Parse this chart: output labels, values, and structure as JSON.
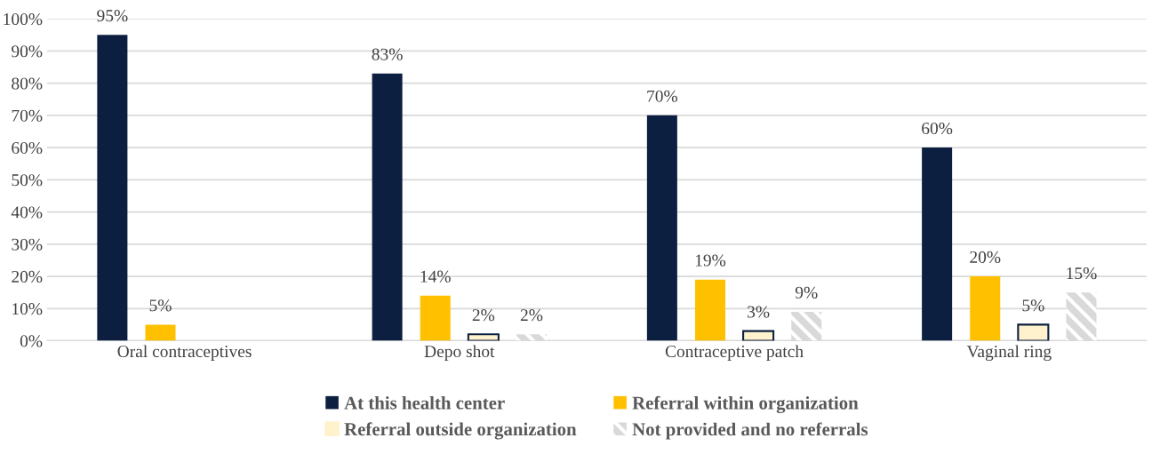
{
  "chart_data": {
    "type": "bar",
    "categories": [
      "Oral contraceptives",
      "Depo shot",
      "Contraceptive patch",
      "Vaginal ring"
    ],
    "series": [
      {
        "name": "At this health center",
        "color": "#0c1f40",
        "values": [
          95,
          83,
          70,
          60
        ],
        "value_labels": [
          "95%",
          "83%",
          "70%",
          "60%"
        ]
      },
      {
        "name": "Referral within organization",
        "color": "#ffc000",
        "values": [
          5,
          14,
          19,
          20
        ],
        "value_labels": [
          "5%",
          "14%",
          "19%",
          "20%"
        ]
      },
      {
        "name": "Referral outside organization",
        "color": "#fff2cc",
        "values": [
          null,
          2,
          3,
          5
        ],
        "value_labels": [
          null,
          "2%",
          "3%",
          "5%"
        ]
      },
      {
        "name": "Not provided and no referrals",
        "color": "#d9d9d9",
        "values": [
          null,
          2,
          9,
          15
        ],
        "value_labels": [
          null,
          "2%",
          "9%",
          "15%"
        ]
      }
    ],
    "ylim": [
      0,
      100
    ],
    "yticks": [
      {
        "value": 0,
        "label": "0%"
      },
      {
        "value": 10,
        "label": "10%"
      },
      {
        "value": 20,
        "label": "20%"
      },
      {
        "value": 30,
        "label": "30%"
      },
      {
        "value": 40,
        "label": "40%"
      },
      {
        "value": 50,
        "label": "50%"
      },
      {
        "value": 60,
        "label": "60%"
      },
      {
        "value": 70,
        "label": "70%"
      },
      {
        "value": 80,
        "label": "80%"
      },
      {
        "value": 90,
        "label": "90%"
      },
      {
        "value": 100,
        "label": "100%"
      }
    ],
    "grid": "y",
    "legend": "bottom"
  }
}
